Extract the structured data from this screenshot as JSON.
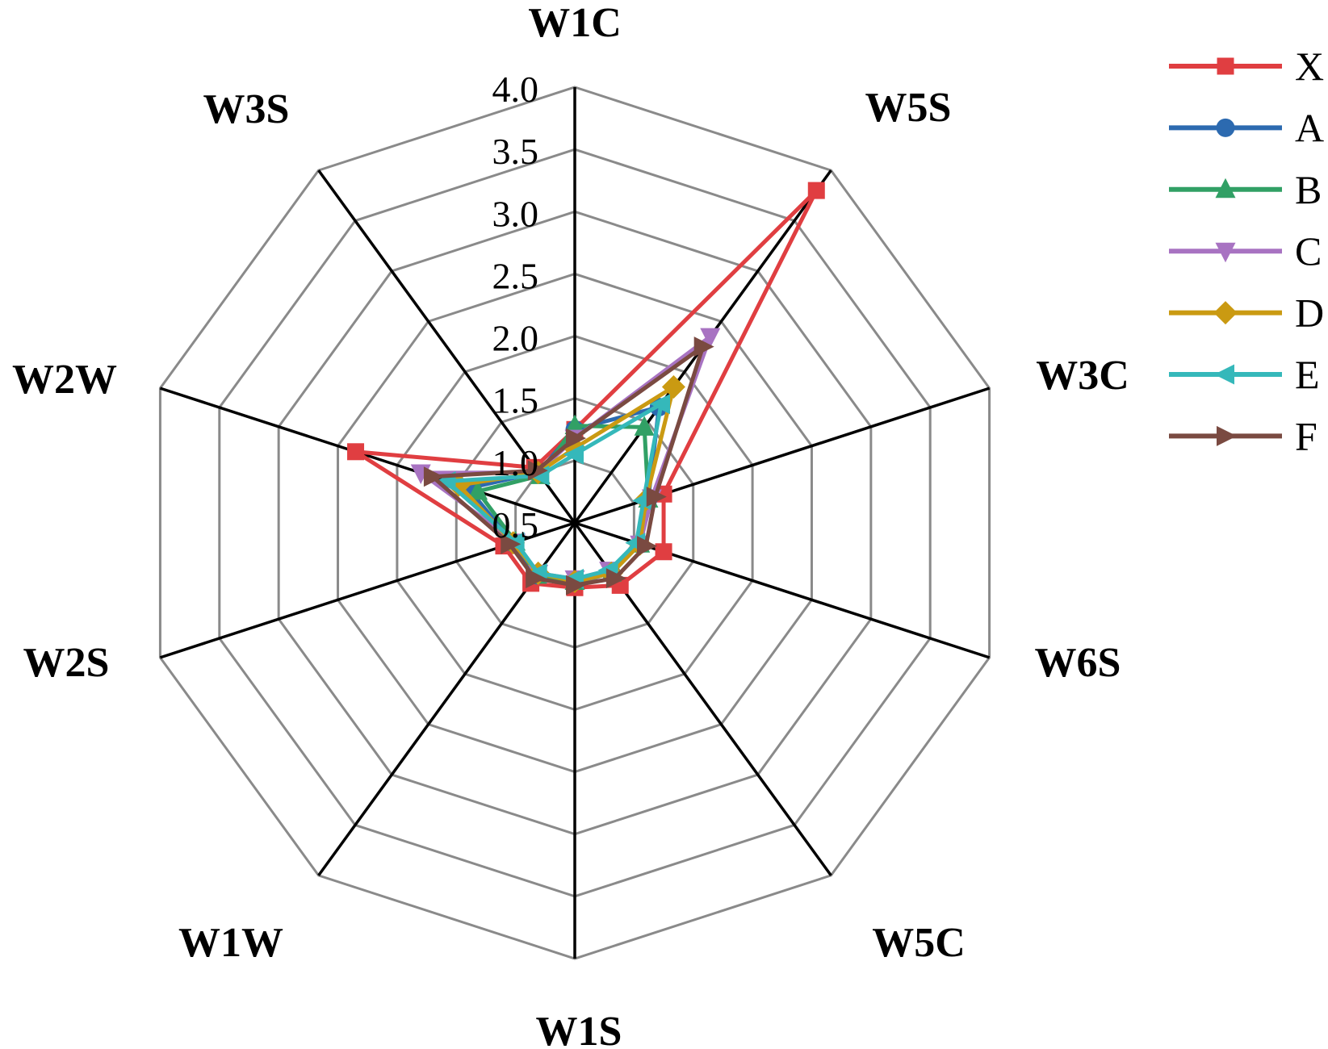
{
  "chart_data": {
    "type": "radar",
    "title": "",
    "axes": [
      "W1C",
      "W5S",
      "W3C",
      "W6S",
      "W5C",
      "W1S",
      "W1W",
      "W2S",
      "W2W",
      "W3S"
    ],
    "r_min": 0.5,
    "r_max": 4.0,
    "r_ticks": [
      "0.5",
      "1.0",
      "1.5",
      "2.0",
      "2.5",
      "3.0",
      "3.5",
      "4.0"
    ],
    "grid": "on",
    "grid_color": "#8a8a8a",
    "spoke_color": "#000000",
    "legend_position": "right",
    "series": [
      {
        "name": "X",
        "color": "#e03e41",
        "marker": "square",
        "values": [
          1.25,
          3.8,
          1.25,
          1.25,
          1.12,
          1.02,
          1.1,
          1.1,
          2.35,
          1.05
        ]
      },
      {
        "name": "A",
        "color": "#2c6ab0",
        "marker": "circle",
        "values": [
          1.25,
          1.65,
          1.12,
          1.05,
          1.0,
          0.97,
          1.02,
          1.02,
          1.4,
          1.0
        ]
      },
      {
        "name": "B",
        "color": "#31a065",
        "marker": "triangle-up",
        "values": [
          1.28,
          1.45,
          1.12,
          1.05,
          1.0,
          0.97,
          1.02,
          1.0,
          1.32,
          0.97
        ]
      },
      {
        "name": "C",
        "color": "#a873c2",
        "marker": "triangle-down",
        "values": [
          1.18,
          2.35,
          1.15,
          1.05,
          0.97,
          0.95,
          1.0,
          1.0,
          1.8,
          1.0
        ]
      },
      {
        "name": "D",
        "color": "#ca9a12",
        "marker": "diamond",
        "values": [
          1.1,
          1.85,
          1.1,
          1.05,
          1.0,
          0.97,
          1.0,
          1.02,
          1.48,
          1.0
        ]
      },
      {
        "name": "E",
        "color": "#35b8ba",
        "marker": "triangle-left",
        "values": [
          1.05,
          1.68,
          1.08,
          1.02,
          0.97,
          0.95,
          1.0,
          1.0,
          1.58,
          0.97
        ]
      },
      {
        "name": "F",
        "color": "#7a4a41",
        "marker": "triangle-right",
        "values": [
          1.18,
          2.25,
          1.18,
          1.1,
          1.05,
          1.0,
          1.05,
          1.05,
          1.7,
          1.02
        ]
      }
    ]
  }
}
